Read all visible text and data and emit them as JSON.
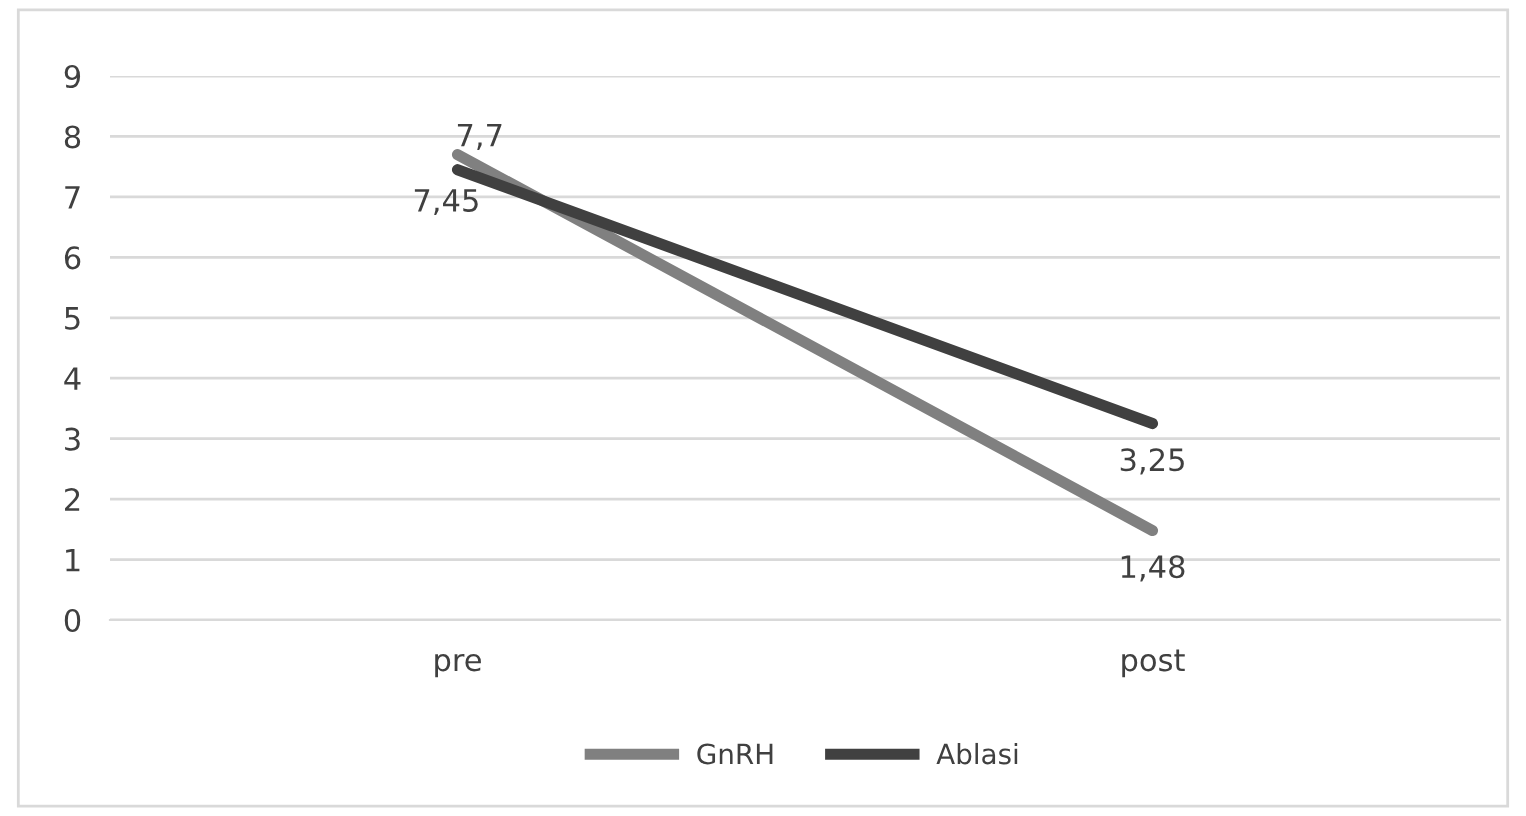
{
  "chart_data": {
    "type": "line",
    "categories": [
      "pre",
      "post"
    ],
    "series": [
      {
        "name": "GnRH",
        "color": "#808080",
        "values": [
          7.7,
          1.48
        ],
        "value_labels": [
          "7,7",
          "1,48"
        ]
      },
      {
        "name": "Ablasi",
        "color": "#404040",
        "values": [
          7.45,
          3.25
        ],
        "value_labels": [
          "7,45",
          "3,25"
        ]
      }
    ],
    "ylim": [
      0,
      9
    ],
    "yticks": [
      0,
      1,
      2,
      3,
      4,
      5,
      6,
      7,
      8,
      9
    ],
    "grid": "y",
    "legend": "bottom",
    "marker": "none",
    "line_style": "solid"
  }
}
